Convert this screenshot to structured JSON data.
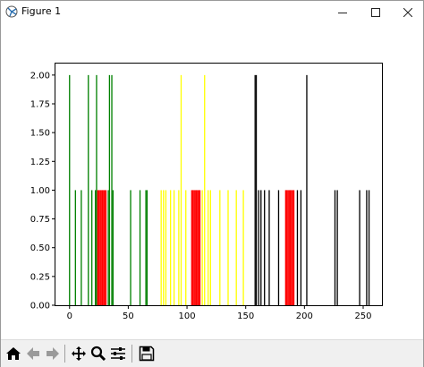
{
  "window": {
    "title": "Figure 1",
    "app_icon": "matplotlib-icon",
    "controls": {
      "minimize_icon": "minimize-icon",
      "maximize_icon": "maximize-icon",
      "close_icon": "close-icon"
    }
  },
  "toolbar": {
    "buttons": [
      {
        "name": "home-button",
        "icon": "home-icon"
      },
      {
        "name": "back-button",
        "icon": "arrow-left-icon"
      },
      {
        "name": "forward-button",
        "icon": "arrow-right-icon"
      },
      {
        "name": "pan-button",
        "icon": "move-icon"
      },
      {
        "name": "zoom-button",
        "icon": "magnifier-icon"
      },
      {
        "name": "configure-subplots-button",
        "icon": "sliders-icon"
      },
      {
        "name": "save-button",
        "icon": "floppy-disk-icon"
      }
    ]
  },
  "chart_data": {
    "type": "bar",
    "title": "",
    "xlabel": "",
    "ylabel": "",
    "xlim": [
      -12,
      266
    ],
    "ylim": [
      0,
      2.1
    ],
    "xticks": [
      "0",
      "50",
      "100",
      "150",
      "200",
      "250"
    ],
    "xtick_values": [
      0,
      50,
      100,
      150,
      200,
      250
    ],
    "yticks": [
      "0.00",
      "0.25",
      "0.50",
      "0.75",
      "1.00",
      "1.25",
      "1.50",
      "1.75",
      "2.00"
    ],
    "ytick_values": [
      0,
      0.25,
      0.5,
      0.75,
      1,
      1.25,
      1.5,
      1.75,
      2
    ],
    "grid": false,
    "bar_width": 1,
    "series": [
      {
        "color": "#008000",
        "bars": [
          {
            "x": 0,
            "h": 2
          },
          {
            "x": 5,
            "h": 1
          },
          {
            "x": 10,
            "h": 1
          },
          {
            "x": 16,
            "h": 2
          },
          {
            "x": 19,
            "h": 1
          },
          {
            "x": 22,
            "h": 1
          },
          {
            "x": 23,
            "h": 2
          },
          {
            "x": 33,
            "h": 1
          },
          {
            "x": 34,
            "h": 2
          },
          {
            "x": 36,
            "h": 2
          },
          {
            "x": 37,
            "h": 1
          },
          {
            "x": 52,
            "h": 1
          },
          {
            "x": 60,
            "h": 1
          },
          {
            "x": 65,
            "h": 1
          },
          {
            "x": 66,
            "h": 1
          }
        ]
      },
      {
        "color": "#ff0000",
        "bars": [
          {
            "x": 24,
            "h": 1
          },
          {
            "x": 25,
            "h": 1
          },
          {
            "x": 26,
            "h": 1
          },
          {
            "x": 27,
            "h": 1
          },
          {
            "x": 28,
            "h": 1
          },
          {
            "x": 29,
            "h": 1
          },
          {
            "x": 30,
            "h": 1
          },
          {
            "x": 31,
            "h": 1
          },
          {
            "x": 104,
            "h": 1
          },
          {
            "x": 105,
            "h": 1
          },
          {
            "x": 106,
            "h": 1
          },
          {
            "x": 107,
            "h": 1
          },
          {
            "x": 108,
            "h": 1
          },
          {
            "x": 109,
            "h": 1
          },
          {
            "x": 110,
            "h": 1
          },
          {
            "x": 111,
            "h": 1
          },
          {
            "x": 184,
            "h": 1
          },
          {
            "x": 185,
            "h": 1
          },
          {
            "x": 186,
            "h": 1
          },
          {
            "x": 187,
            "h": 1
          },
          {
            "x": 188,
            "h": 1
          },
          {
            "x": 189,
            "h": 1
          },
          {
            "x": 190,
            "h": 1
          },
          {
            "x": 191,
            "h": 1
          }
        ]
      },
      {
        "color": "#ffff00",
        "bars": [
          {
            "x": 78,
            "h": 1
          },
          {
            "x": 80,
            "h": 1
          },
          {
            "x": 82,
            "h": 1
          },
          {
            "x": 86,
            "h": 1
          },
          {
            "x": 89,
            "h": 1
          },
          {
            "x": 93,
            "h": 1
          },
          {
            "x": 95,
            "h": 2
          },
          {
            "x": 99,
            "h": 1
          },
          {
            "x": 113,
            "h": 1
          },
          {
            "x": 115,
            "h": 2
          },
          {
            "x": 118,
            "h": 1
          },
          {
            "x": 120,
            "h": 1
          },
          {
            "x": 128,
            "h": 1
          },
          {
            "x": 135,
            "h": 1
          },
          {
            "x": 142,
            "h": 1
          },
          {
            "x": 148,
            "h": 1
          }
        ]
      },
      {
        "color": "#000000",
        "bars": [
          {
            "x": 158,
            "h": 2
          },
          {
            "x": 159,
            "h": 2
          },
          {
            "x": 161,
            "h": 1
          },
          {
            "x": 163,
            "h": 1
          },
          {
            "x": 166,
            "h": 1
          },
          {
            "x": 170,
            "h": 1
          },
          {
            "x": 178,
            "h": 1
          },
          {
            "x": 194,
            "h": 1
          },
          {
            "x": 197,
            "h": 1
          },
          {
            "x": 202,
            "h": 2
          },
          {
            "x": 226,
            "h": 1
          },
          {
            "x": 228,
            "h": 1
          },
          {
            "x": 247,
            "h": 1
          },
          {
            "x": 253,
            "h": 1
          },
          {
            "x": 255,
            "h": 1
          }
        ]
      }
    ]
  }
}
